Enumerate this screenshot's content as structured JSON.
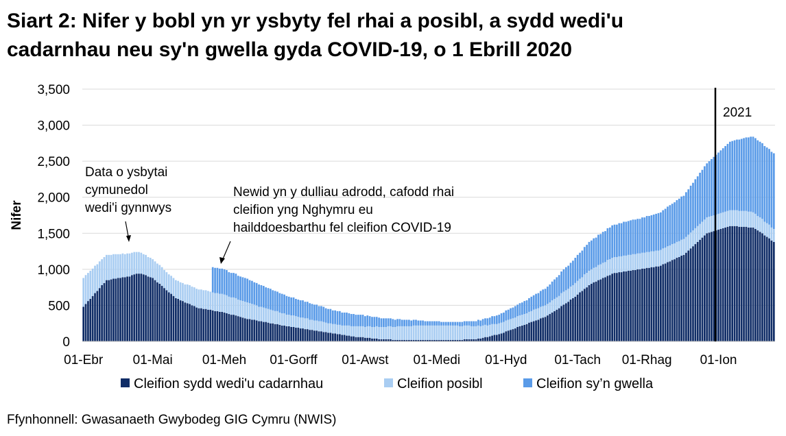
{
  "chart_data": {
    "type": "stacked_bar",
    "title": [
      "Siart 2: Nifer y bobl yn yr ysbyty fel rhai a posibl, a sydd wedi'u",
      "cadarnhau neu sy'n gwella gyda COVID-19, o 1 Ebrill 2020"
    ],
    "y_label": "Nifer",
    "source": "Ffynhonnell: Gwasanaeth Gwybodeg GIG Cymru (NWIS)",
    "annotations": [
      {
        "lines": [
          "Data o ysbytai",
          "cymunedol",
          "wedi'i gynnwys"
        ]
      },
      {
        "lines": [
          "Newid yn y dulliau adrodd, cafodd rhai",
          "cleifion yng Nghymru eu",
          "hailddoesbarthu fel cleifion COVID-19"
        ]
      },
      {
        "lines": [
          "2021"
        ]
      }
    ],
    "ylim": [
      0,
      3500
    ],
    "yticks": [
      0,
      500,
      {
        "value": 1000,
        "label": "1,000"
      },
      {
        "value": 1500,
        "label": "1,500"
      },
      {
        "value": 2000,
        "label": "2,000"
      },
      {
        "value": 2500,
        "label": "2,500"
      },
      {
        "value": 3000,
        "label": "3,000"
      },
      {
        "value": 3500,
        "label": "3,500"
      }
    ],
    "grid": true,
    "categories": [
      "01-Ebr",
      null,
      null,
      null,
      null,
      null,
      null,
      null,
      null,
      null,
      null,
      null,
      null,
      null,
      null,
      null,
      null,
      null,
      null,
      null,
      null,
      null,
      null,
      null,
      null,
      null,
      null,
      null,
      null,
      null,
      "01-Mai",
      null,
      null,
      null,
      null,
      null,
      null,
      null,
      null,
      null,
      null,
      null,
      null,
      null,
      null,
      null,
      null,
      null,
      null,
      null,
      null,
      null,
      null,
      null,
      null,
      null,
      null,
      null,
      null,
      null,
      null,
      "01-Meh",
      null,
      null,
      null,
      null,
      null,
      null,
      null,
      null,
      null,
      null,
      null,
      null,
      null,
      null,
      null,
      null,
      null,
      null,
      null,
      null,
      null,
      null,
      null,
      null,
      null,
      null,
      null,
      null,
      null,
      "01-Gorff",
      null,
      null,
      null,
      null,
      null,
      null,
      null,
      null,
      null,
      null,
      null,
      null,
      null,
      null,
      null,
      null,
      null,
      null,
      null,
      null,
      null,
      null,
      null,
      null,
      null,
      null,
      null,
      null,
      null,
      null,
      "01-Awst",
      null,
      null,
      null,
      null,
      null,
      null,
      null,
      null,
      null,
      null,
      null,
      null,
      null,
      null,
      null,
      null,
      null,
      null,
      null,
      null,
      null,
      null,
      null,
      null,
      null,
      null,
      null,
      null,
      null,
      null,
      "01-Medi",
      null,
      null,
      null,
      null,
      null,
      null,
      null,
      null,
      null,
      null,
      null,
      null,
      null,
      null,
      null,
      null,
      null,
      null,
      null,
      null,
      null,
      null,
      null,
      null,
      null,
      null,
      null,
      null,
      null,
      "01-Hyd",
      null,
      null,
      null,
      null,
      null,
      null,
      null,
      null,
      null,
      null,
      null,
      null,
      null,
      null,
      null,
      null,
      null,
      null,
      null,
      null,
      null,
      null,
      null,
      null,
      null,
      null,
      null,
      null,
      null,
      null,
      "01-Tach",
      null,
      null,
      null,
      null,
      null,
      null,
      null,
      null,
      null,
      null,
      null,
      null,
      null,
      null,
      null,
      null,
      null,
      null,
      null,
      null,
      null,
      null,
      null,
      null,
      null,
      null,
      null,
      null,
      null,
      "01-Rhag",
      null,
      null,
      null,
      null,
      null,
      null,
      null,
      null,
      null,
      null,
      null,
      null,
      null,
      null,
      null,
      null,
      null,
      null,
      null,
      null,
      null,
      null,
      null,
      null,
      null,
      null,
      null,
      null,
      null,
      null,
      "01-Ion",
      null,
      null,
      null,
      null,
      null,
      null,
      null,
      null,
      null,
      null,
      null,
      null,
      null,
      null,
      null,
      null,
      null,
      null,
      null,
      null,
      null,
      null,
      null,
      null
    ],
    "series": [
      {
        "name": "Cleifion sydd wedi'u cadarnhau",
        "color": "#0f2c66",
        "values": [
          480,
          520,
          560,
          590,
          630,
          670,
          700,
          740,
          780,
          810,
          850,
          850,
          860,
          870,
          870,
          880,
          880,
          890,
          890,
          900,
          900,
          920,
          930,
          940,
          940,
          940,
          930,
          920,
          900,
          890,
          880,
          850,
          820,
          800,
          770,
          740,
          710,
          680,
          660,
          630,
          600,
          590,
          570,
          560,
          540,
          530,
          520,
          500,
          490,
          470,
          460,
          460,
          450,
          450,
          440,
          440,
          430,
          420,
          420,
          410,
          410,
          400,
          390,
          380,
          370,
          370,
          360,
          350,
          340,
          330,
          320,
          310,
          310,
          300,
          300,
          290,
          280,
          280,
          270,
          270,
          260,
          250,
          250,
          240,
          240,
          230,
          220,
          220,
          210,
          210,
          200,
          200,
          190,
          190,
          180,
          180,
          170,
          170,
          160,
          160,
          150,
          150,
          140,
          140,
          130,
          130,
          120,
          120,
          110,
          110,
          100,
          100,
          90,
          90,
          80,
          80,
          70,
          70,
          60,
          60,
          60,
          60,
          50,
          50,
          50,
          40,
          40,
          40,
          30,
          30,
          30,
          30,
          30,
          30,
          20,
          20,
          20,
          20,
          20,
          20,
          20,
          20,
          20,
          20,
          20,
          20,
          20,
          20,
          20,
          20,
          20,
          20,
          20,
          20,
          20,
          20,
          20,
          20,
          20,
          20,
          20,
          20,
          20,
          20,
          20,
          30,
          30,
          30,
          30,
          30,
          30,
          40,
          40,
          50,
          60,
          60,
          70,
          80,
          90,
          90,
          100,
          110,
          120,
          140,
          150,
          160,
          170,
          180,
          200,
          210,
          220,
          230,
          240,
          260,
          270,
          280,
          290,
          300,
          320,
          330,
          340,
          360,
          380,
          400,
          420,
          440,
          460,
          490,
          510,
          530,
          550,
          580,
          600,
          620,
          650,
          680,
          700,
          730,
          750,
          780,
          800,
          820,
          830,
          850,
          860,
          880,
          890,
          910,
          920,
          940,
          950,
          950,
          960,
          960,
          970,
          970,
          980,
          980,
          990,
          990,
          1000,
          1000,
          1010,
          1010,
          1020,
          1020,
          1030,
          1030,
          1040,
          1040,
          1050,
          1070,
          1080,
          1100,
          1110,
          1130,
          1140,
          1160,
          1170,
          1190,
          1200,
          1230,
          1260,
          1290,
          1320,
          1350,
          1380,
          1410,
          1440,
          1470,
          1500,
          1510,
          1520,
          1530,
          1540,
          1550,
          1560,
          1570,
          1580,
          1590,
          1600,
          1600,
          1600,
          1600,
          1590,
          1590,
          1590,
          1590,
          1580,
          1580,
          1580,
          1560,
          1540,
          1520,
          1500,
          1470,
          1450,
          1430,
          1400,
          1380
        ]
      },
      {
        "name": "Cleifion posibl",
        "color": "#a9cdf2",
        "values": [
          400,
          400,
          390,
          390,
          380,
          380,
          370,
          370,
          360,
          360,
          350,
          350,
          340,
          340,
          340,
          330,
          330,
          330,
          320,
          320,
          320,
          310,
          310,
          300,
          300,
          290,
          280,
          280,
          270,
          270,
          260,
          260,
          260,
          260,
          260,
          250,
          250,
          250,
          250,
          250,
          250,
          250,
          250,
          250,
          250,
          260,
          260,
          260,
          260,
          260,
          260,
          260,
          260,
          260,
          260,
          250,
          250,
          250,
          250,
          250,
          250,
          250,
          250,
          240,
          240,
          240,
          240,
          230,
          230,
          230,
          230,
          230,
          220,
          220,
          210,
          210,
          200,
          200,
          200,
          190,
          190,
          190,
          180,
          180,
          180,
          170,
          170,
          170,
          160,
          160,
          160,
          160,
          160,
          150,
          150,
          150,
          150,
          150,
          140,
          140,
          140,
          140,
          140,
          140,
          140,
          130,
          130,
          130,
          130,
          130,
          130,
          130,
          130,
          130,
          140,
          140,
          140,
          140,
          150,
          150,
          150,
          150,
          150,
          160,
          160,
          160,
          160,
          170,
          170,
          170,
          170,
          170,
          180,
          180,
          180,
          180,
          190,
          190,
          190,
          190,
          190,
          190,
          190,
          200,
          200,
          200,
          200,
          200,
          200,
          200,
          200,
          200,
          200,
          200,
          200,
          200,
          200,
          200,
          200,
          200,
          200,
          200,
          200,
          190,
          190,
          190,
          190,
          190,
          180,
          180,
          180,
          180,
          170,
          170,
          170,
          160,
          160,
          160,
          150,
          150,
          150,
          150,
          150,
          150,
          150,
          150,
          150,
          150,
          150,
          150,
          150,
          150,
          150,
          150,
          150,
          160,
          160,
          160,
          160,
          160,
          160,
          160,
          160,
          170,
          170,
          170,
          170,
          180,
          180,
          180,
          180,
          180,
          180,
          190,
          190,
          190,
          190,
          200,
          200,
          200,
          200,
          200,
          200,
          210,
          210,
          210,
          210,
          220,
          220,
          220,
          220,
          220,
          220,
          220,
          220,
          220,
          220,
          220,
          220,
          220,
          220,
          220,
          220,
          220,
          220,
          220,
          220,
          220,
          220,
          220,
          220,
          220,
          220,
          220,
          220,
          220,
          220,
          220,
          220,
          220,
          220,
          220,
          220,
          220,
          220,
          220,
          220,
          220,
          220,
          220,
          220,
          220,
          220,
          220,
          220,
          220,
          220,
          220,
          220,
          220,
          220,
          220,
          220,
          220,
          220,
          220,
          220,
          220,
          220,
          220,
          210,
          210,
          200,
          200,
          200,
          190,
          190,
          190,
          180,
          180
        ]
      },
      {
        "name": "Cleifion sy’n gwella",
        "color": "#5a9be8",
        "values": [
          0,
          0,
          0,
          0,
          0,
          0,
          0,
          0,
          0,
          0,
          0,
          0,
          0,
          0,
          0,
          0,
          0,
          0,
          0,
          0,
          0,
          0,
          0,
          0,
          0,
          0,
          0,
          0,
          0,
          0,
          0,
          0,
          0,
          0,
          0,
          0,
          0,
          0,
          0,
          0,
          0,
          0,
          0,
          0,
          0,
          0,
          0,
          0,
          0,
          0,
          0,
          0,
          0,
          0,
          0,
          0,
          350,
          350,
          350,
          350,
          350,
          350,
          350,
          340,
          340,
          340,
          340,
          330,
          330,
          330,
          330,
          330,
          320,
          320,
          310,
          310,
          310,
          300,
          300,
          290,
          290,
          290,
          280,
          280,
          270,
          270,
          270,
          260,
          260,
          250,
          250,
          250,
          240,
          240,
          240,
          240,
          230,
          230,
          230,
          220,
          220,
          220,
          210,
          210,
          210,
          200,
          200,
          200,
          190,
          190,
          190,
          190,
          180,
          180,
          180,
          170,
          170,
          170,
          160,
          160,
          160,
          160,
          150,
          150,
          140,
          140,
          140,
          130,
          130,
          120,
          120,
          120,
          110,
          110,
          110,
          100,
          100,
          100,
          90,
          90,
          90,
          90,
          80,
          80,
          80,
          70,
          70,
          70,
          60,
          60,
          60,
          60,
          60,
          60,
          60,
          50,
          50,
          50,
          50,
          50,
          50,
          50,
          50,
          60,
          60,
          60,
          60,
          60,
          70,
          70,
          70,
          80,
          80,
          90,
          90,
          100,
          100,
          110,
          110,
          120,
          120,
          130,
          130,
          140,
          140,
          150,
          150,
          160,
          160,
          170,
          170,
          180,
          180,
          190,
          200,
          200,
          210,
          210,
          220,
          230,
          230,
          240,
          250,
          260,
          270,
          280,
          290,
          300,
          310,
          320,
          320,
          330,
          340,
          350,
          360,
          360,
          370,
          380,
          390,
          400,
          400,
          410,
          410,
          420,
          420,
          430,
          430,
          440,
          440,
          450,
          450,
          450,
          460,
          460,
          470,
          470,
          470,
          480,
          480,
          480,
          480,
          480,
          490,
          490,
          500,
          500,
          500,
          510,
          510,
          520,
          520,
          530,
          540,
          550,
          560,
          560,
          570,
          580,
          590,
          600,
          600,
          620,
          630,
          650,
          660,
          680,
          690,
          710,
          720,
          740,
          750,
          770,
          790,
          810,
          830,
          850,
          870,
          890,
          910,
          930,
          950,
          960,
          970,
          980,
          990,
          1000,
          1010,
          1020,
          1030,
          1040,
          1050,
          1050,
          1050,
          1050,
          1050,
          1050,
          1050,
          1050,
          1050,
          1050
        ]
      }
    ]
  }
}
